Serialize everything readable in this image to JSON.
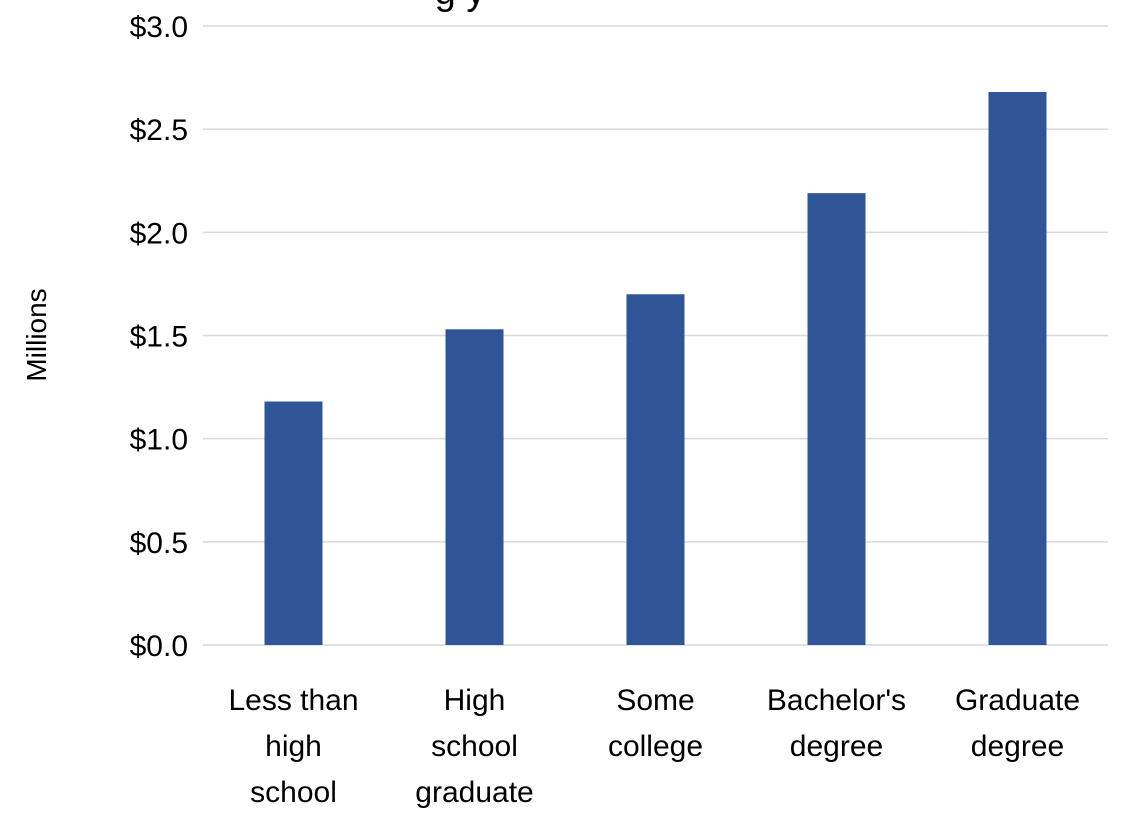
{
  "chart_data": {
    "type": "bar",
    "title": "",
    "title_fragment": "g y",
    "ylabel": "Millions",
    "xlabel": "",
    "categories": [
      [
        "Less than",
        "high",
        "school"
      ],
      [
        "High",
        "school",
        "graduate"
      ],
      [
        "Some",
        "college"
      ],
      [
        "Bachelor's",
        "degree"
      ],
      [
        "Graduate",
        "degree"
      ]
    ],
    "values": [
      1.18,
      1.53,
      1.7,
      2.19,
      2.68
    ],
    "ylim": [
      0,
      3.0
    ],
    "yticks": [
      0.0,
      0.5,
      1.0,
      1.5,
      2.0,
      2.5,
      3.0
    ],
    "ytick_labels": [
      "$0.0",
      "$0.5",
      "$1.0",
      "$1.5",
      "$2.0",
      "$2.5",
      "$3.0"
    ],
    "grid": true,
    "legend": "none",
    "bar_color": "#2f5597",
    "grid_color": "#d9d9d9"
  }
}
